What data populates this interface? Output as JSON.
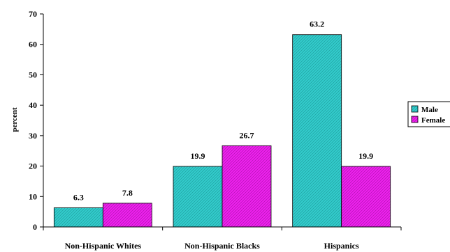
{
  "chart_data": {
    "type": "bar",
    "title": "",
    "xlabel": "",
    "ylabel": "percent",
    "ylim": [
      0,
      70
    ],
    "ytick_step": 10,
    "categories": [
      "Non-Hispanic Whites",
      "Non-Hispanic Blacks",
      "Hispanics"
    ],
    "series": [
      {
        "name": "Male",
        "values": [
          6.3,
          19.9,
          63.2
        ],
        "color": "#33cccc"
      },
      {
        "name": "Female",
        "values": [
          7.8,
          26.7,
          19.9
        ],
        "color": "#ee22ee"
      }
    ],
    "data_labels": [
      [
        "6.3",
        "19.9",
        "63.2"
      ],
      [
        "7.8",
        "26.7",
        "19.9"
      ]
    ],
    "legend": {
      "position": "right"
    },
    "grid": false
  }
}
